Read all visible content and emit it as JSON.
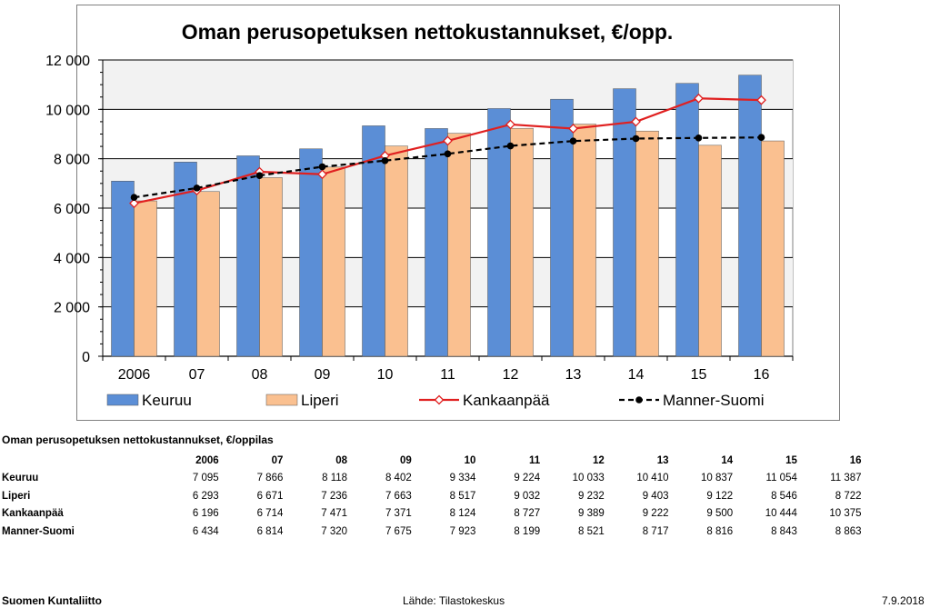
{
  "chart_data": {
    "type": "bar",
    "title": "Oman perusopetuksen nettokustannukset, €/opp.",
    "categories": [
      "2006",
      "07",
      "08",
      "09",
      "10",
      "11",
      "12",
      "13",
      "14",
      "15",
      "16"
    ],
    "ylim": [
      0,
      12000
    ],
    "yticks": [
      0,
      2000,
      4000,
      6000,
      8000,
      10000,
      12000
    ],
    "ytick_labels": [
      "0",
      "2 000",
      "4 000",
      "6 000",
      "8 000",
      "10 000",
      "12 000"
    ],
    "grid": true,
    "legend_position": "bottom",
    "series": [
      {
        "name": "Keuruu",
        "kind": "bar",
        "color": "#5b8ed6",
        "values": [
          7095,
          7866,
          8118,
          8402,
          9334,
          9224,
          10033,
          10410,
          10837,
          11054,
          11387
        ]
      },
      {
        "name": "Liperi",
        "kind": "bar",
        "color": "#fac090",
        "values": [
          6293,
          6671,
          7236,
          7663,
          8517,
          9032,
          9232,
          9403,
          9122,
          8546,
          8722
        ]
      },
      {
        "name": "Kankaanpää",
        "kind": "line",
        "color": "#e02020",
        "values": [
          6196,
          6714,
          7471,
          7371,
          8124,
          8727,
          9389,
          9222,
          9500,
          10444,
          10375
        ]
      },
      {
        "name": "Manner-Suomi",
        "kind": "line-dashed",
        "color": "#000000",
        "values": [
          6434,
          6814,
          7320,
          7675,
          7923,
          8199,
          8521,
          8717,
          8816,
          8843,
          8863
        ]
      }
    ]
  },
  "table": {
    "title": "Oman perusopetuksen nettokustannukset, €/oppilas",
    "headers": [
      "2006",
      "07",
      "08",
      "09",
      "10",
      "11",
      "12",
      "13",
      "14",
      "15",
      "16"
    ],
    "rows": [
      {
        "label": "Keuruu",
        "values": [
          "7 095",
          "7 866",
          "8 118",
          "8 402",
          "9 334",
          "9 224",
          "10 033",
          "10 410",
          "10 837",
          "11 054",
          "11 387"
        ]
      },
      {
        "label": "Liperi",
        "values": [
          "6 293",
          "6 671",
          "7 236",
          "7 663",
          "8 517",
          "9 032",
          "9 232",
          "9 403",
          "9 122",
          "8 546",
          "8 722"
        ]
      },
      {
        "label": "Kankaanpää",
        "values": [
          "6 196",
          "6 714",
          "7 471",
          "7 371",
          "8 124",
          "8 727",
          "9 389",
          "9 222",
          "9 500",
          "10 444",
          "10 375"
        ]
      },
      {
        "label": "Manner-Suomi",
        "values": [
          "6 434",
          "6 814",
          "7 320",
          "7 675",
          "7 923",
          "8 199",
          "8 521",
          "8 717",
          "8 816",
          "8 843",
          "8 863"
        ]
      }
    ]
  },
  "footer": {
    "organization": "Suomen Kuntaliitto",
    "source": "Lähde: Tilastokeskus",
    "date": "7.9.2018"
  }
}
